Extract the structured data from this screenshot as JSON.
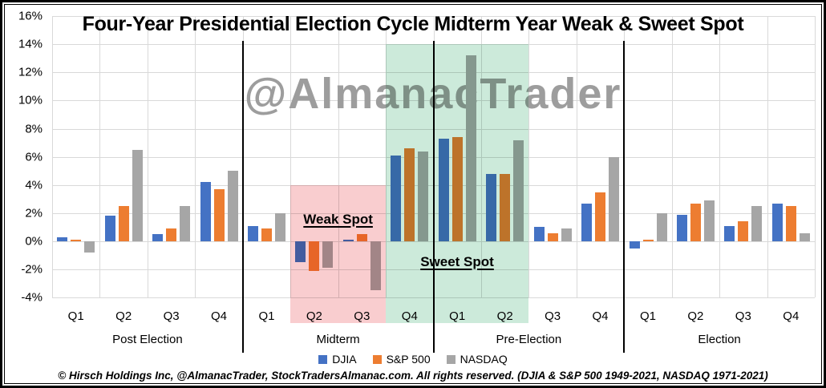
{
  "title": "Four-Year Presidential Election Cycle Midterm Year Weak & Sweet Spot",
  "watermark": "@AlmanacTrader",
  "footer": "© Hirsch Holdings Inc, @AlmanacTrader, StockTradersAlmanac.com. All rights reserved. (DJIA & S&P 500 1949-2021, NASDAQ 1971-2021)",
  "colors": {
    "djia": "#4472C4",
    "sp500": "#ED7D31",
    "nasdaq": "#A6A6A6",
    "gridline": "#D9D9D9",
    "weak_region": "#F9CDCF",
    "sweet_region": "#CCEADA",
    "separator": "#000000",
    "watermark": "#9D9D9D"
  },
  "chart_data": {
    "type": "bar",
    "title": "Four-Year Presidential Election Cycle Midterm Year Weak & Sweet Spot",
    "ylabel": "",
    "xlabel": "",
    "ylim": [
      -4,
      16
    ],
    "ytick_step": 2,
    "ytick_format": "percent",
    "grid": true,
    "legend_position": "bottom",
    "groups": [
      {
        "label": "Post Election",
        "quarters": [
          "Q1",
          "Q2",
          "Q3",
          "Q4"
        ]
      },
      {
        "label": "Midterm",
        "quarters": [
          "Q1",
          "Q2",
          "Q3",
          "Q4"
        ]
      },
      {
        "label": "Pre-Election",
        "quarters": [
          "Q1",
          "Q2",
          "Q3",
          "Q4"
        ]
      },
      {
        "label": "Election",
        "quarters": [
          "Q1",
          "Q2",
          "Q3",
          "Q4"
        ]
      }
    ],
    "series": [
      {
        "name": "DJIA",
        "color": "#4472C4",
        "values": [
          0.3,
          1.8,
          0.5,
          4.2,
          1.1,
          -1.5,
          0.1,
          6.1,
          7.3,
          4.8,
          1.0,
          2.7,
          -0.5,
          1.9,
          1.1,
          2.7
        ]
      },
      {
        "name": "S&P 500",
        "color": "#ED7D31",
        "values": [
          0.1,
          2.5,
          0.9,
          3.7,
          0.9,
          -2.1,
          0.5,
          6.6,
          7.4,
          4.8,
          0.6,
          3.5,
          0.1,
          2.7,
          1.4,
          2.5
        ]
      },
      {
        "name": "NASDAQ",
        "color": "#A6A6A6",
        "values": [
          -0.8,
          6.5,
          2.5,
          5.0,
          2.0,
          -1.9,
          -3.5,
          6.4,
          13.2,
          7.2,
          0.9,
          6.0,
          2.0,
          2.9,
          2.5,
          0.6
        ]
      }
    ],
    "regions": [
      {
        "label": "Weak Spot",
        "quarter_start": 5,
        "quarter_end": 7,
        "top_pct": 4,
        "color": "#F9CDCF"
      },
      {
        "label": "Sweet Spot",
        "quarter_start": 7,
        "quarter_end": 10,
        "top_pct": 14,
        "color": "#CCEADA"
      }
    ]
  }
}
